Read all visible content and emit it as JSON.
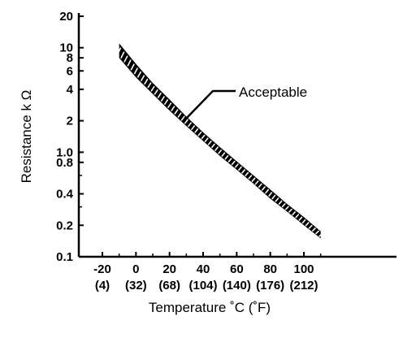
{
  "chart_data": {
    "type": "area",
    "title": "",
    "xlabel": "Temperature ˚C (˚F)",
    "ylabel": "Resistance k Ω",
    "y_scale": "log",
    "ylim": [
      0.1,
      20
    ],
    "xlim": [
      -30,
      110
    ],
    "y_ticks": [
      {
        "value": 20,
        "label": "20"
      },
      {
        "value": 10,
        "label": "10"
      },
      {
        "value": 8,
        "label": "8"
      },
      {
        "value": 6,
        "label": "6"
      },
      {
        "value": 4,
        "label": "4"
      },
      {
        "value": 2,
        "label": "2"
      },
      {
        "value": 1,
        "label": "1.0"
      },
      {
        "value": 0.8,
        "label": "0.8"
      },
      {
        "value": 0.4,
        "label": "0.4"
      },
      {
        "value": 0.2,
        "label": "0.2"
      },
      {
        "value": 0.1,
        "label": "0.1"
      }
    ],
    "x_ticks": [
      {
        "value": -20,
        "label": "-20",
        "label2": "(4)"
      },
      {
        "value": 0,
        "label": "0",
        "label2": "(32)"
      },
      {
        "value": 20,
        "label": "20",
        "label2": "(68)"
      },
      {
        "value": 40,
        "label": "40",
        "label2": "(104)"
      },
      {
        "value": 60,
        "label": "60",
        "label2": "(140)"
      },
      {
        "value": 80,
        "label": "80",
        "label2": "(176)"
      },
      {
        "value": 100,
        "label": "100",
        "label2": "(212)"
      }
    ],
    "series": [
      {
        "name": "Acceptable",
        "x": [
          -10,
          0,
          10,
          20,
          30,
          40,
          50,
          60,
          70,
          80,
          90,
          100,
          110
        ],
        "y_upper": [
          11.0,
          7.0,
          4.6,
          3.2,
          2.2,
          1.55,
          1.12,
          0.82,
          0.6,
          0.44,
          0.32,
          0.24,
          0.175
        ],
        "y_lower": [
          8.0,
          5.2,
          3.6,
          2.5,
          1.78,
          1.28,
          0.92,
          0.68,
          0.5,
          0.36,
          0.27,
          0.2,
          0.15
        ]
      }
    ],
    "annotations": [
      {
        "text": "Acceptable",
        "x": 67,
        "y": 3.6
      }
    ],
    "grid": false,
    "legend": "none"
  }
}
